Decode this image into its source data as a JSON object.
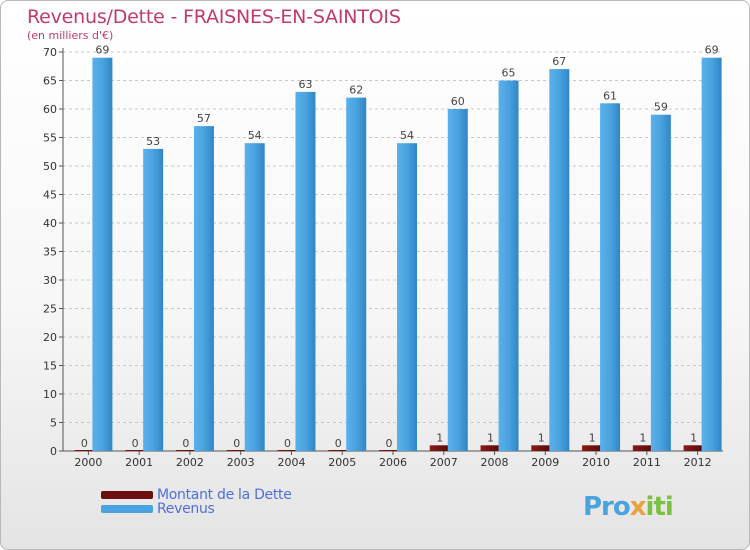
{
  "header": {
    "title": "Revenus/Dette - FRAISNES-EN-SAINTOIS",
    "subtitle": "(en milliers d'€)"
  },
  "legend": {
    "items": [
      {
        "label": "Montant de la Dette",
        "color": "#6b0f0f"
      },
      {
        "label": "Revenus",
        "color": "#4aa3df"
      }
    ]
  },
  "logo": {
    "text": "Proxiti",
    "part1": "Pro",
    "part2": "x",
    "part3": "iti"
  },
  "chart_data": {
    "type": "bar",
    "title": "Revenus/Dette - FRAISNES-EN-SAINTOIS",
    "ylabel": "(en milliers d'€)",
    "xlabel": "",
    "ylim": [
      0,
      70
    ],
    "yticks": [
      0,
      5,
      10,
      15,
      20,
      25,
      30,
      35,
      40,
      45,
      50,
      55,
      60,
      65,
      70
    ],
    "categories": [
      "2000",
      "2001",
      "2002",
      "2003",
      "2004",
      "2005",
      "2006",
      "2007",
      "2008",
      "2009",
      "2010",
      "2011",
      "2012"
    ],
    "series": [
      {
        "name": "Montant de la Dette",
        "color": "#6b0f0f",
        "values": [
          0,
          0,
          0,
          0,
          0,
          0,
          0,
          1,
          1,
          1,
          1,
          1,
          1
        ]
      },
      {
        "name": "Revenus",
        "color": "#4aa3df",
        "values": [
          69,
          53,
          57,
          54,
          63,
          62,
          54,
          60,
          65,
          67,
          61,
          59,
          69
        ]
      }
    ],
    "grid": true,
    "legend_position": "bottom-left"
  }
}
